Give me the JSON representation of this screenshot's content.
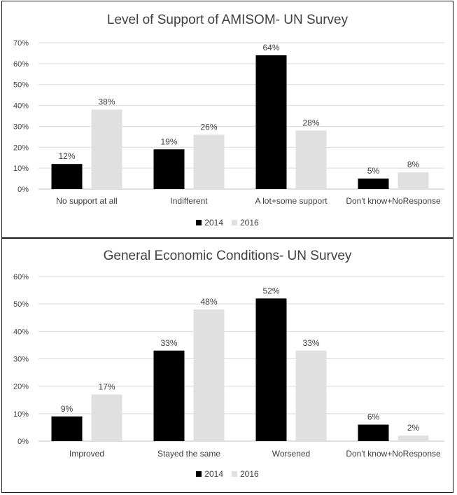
{
  "chart_data": [
    {
      "type": "bar",
      "title": "Level of Support of AMISOM- UN Survey",
      "categories": [
        "No support at all",
        "Indifferent",
        "A lot+some support",
        "Don't know+NoResponse"
      ],
      "series": [
        {
          "name": "2014",
          "values": [
            12,
            19,
            64,
            5
          ],
          "color": "#000000"
        },
        {
          "name": "2016",
          "values": [
            38,
            26,
            28,
            8
          ],
          "color": "#e0e0e0"
        }
      ],
      "ylim": [
        0,
        70
      ],
      "yticks": [
        "0%",
        "10%",
        "20%",
        "30%",
        "40%",
        "50%",
        "60%",
        "70%"
      ],
      "data_labels": [
        [
          "12%",
          "19%",
          "64%",
          "5%"
        ],
        [
          "38%",
          "26%",
          "28%",
          "8%"
        ]
      ],
      "grid": true,
      "legend": "bottom"
    },
    {
      "type": "bar",
      "title": "General Economic Conditions- UN Survey",
      "categories": [
        "Improved",
        "Stayed the same",
        "Worsened",
        "Don't know+NoResponse"
      ],
      "series": [
        {
          "name": "2014",
          "values": [
            9,
            33,
            52,
            6
          ],
          "color": "#000000"
        },
        {
          "name": "2016",
          "values": [
            17,
            48,
            33,
            2
          ],
          "color": "#e0e0e0"
        }
      ],
      "ylim": [
        0,
        60
      ],
      "yticks": [
        "0%",
        "10%",
        "20%",
        "30%",
        "40%",
        "50%",
        "60%"
      ],
      "data_labels": [
        [
          "9%",
          "33%",
          "52%",
          "6%"
        ],
        [
          "17%",
          "48%",
          "33%",
          "2%"
        ]
      ],
      "grid": true,
      "legend": "bottom"
    }
  ]
}
